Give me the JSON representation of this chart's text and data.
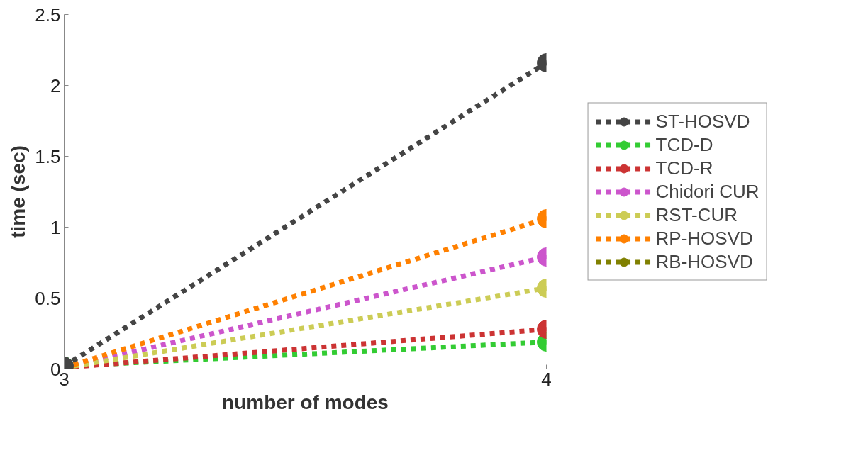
{
  "chart_data": {
    "type": "line",
    "xlabel": "number of modes",
    "ylabel": "time (sec)",
    "x": [
      3,
      4
    ],
    "xlim": [
      3,
      4
    ],
    "xticks": [
      3,
      4
    ],
    "ylim": [
      0,
      2.5
    ],
    "yticks": [
      0,
      0.5,
      1,
      1.5,
      2,
      2.5
    ],
    "grid": false,
    "legend": "right",
    "marker": "circle",
    "line_style": "dotted",
    "series": [
      {
        "name": "ST-HOSVD",
        "color": "#444444",
        "values": [
          0.02,
          2.16
        ]
      },
      {
        "name": "TCD-D",
        "color": "#33cc33",
        "values": [
          0.02,
          0.19
        ]
      },
      {
        "name": "TCD-R",
        "color": "#cc3333",
        "values": [
          0.01,
          0.28
        ]
      },
      {
        "name": "Chidori CUR",
        "color": "#cc55cc",
        "values": [
          0.01,
          0.79
        ]
      },
      {
        "name": "RST-CUR",
        "color": "#cccc55",
        "values": [
          0.01,
          0.57
        ]
      },
      {
        "name": "RP-HOSVD",
        "color": "#ff8000",
        "values": [
          0.01,
          1.06
        ]
      },
      {
        "name": "RB-HOSVD",
        "color": "#808000",
        "values": [
          null,
          null
        ]
      }
    ]
  }
}
